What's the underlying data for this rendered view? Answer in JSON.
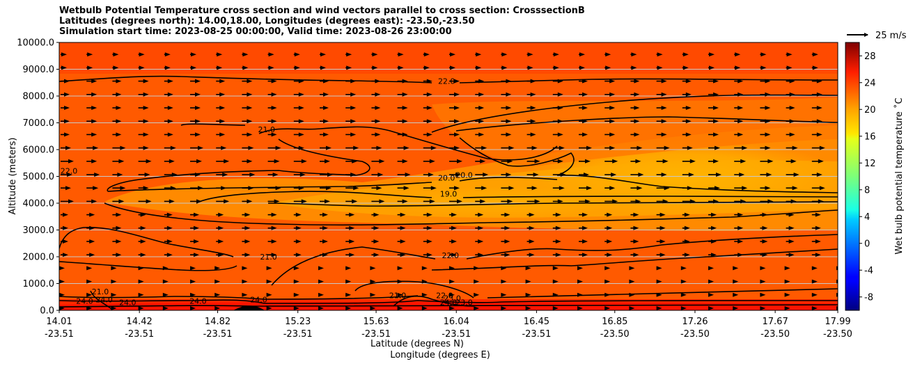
{
  "chart_data": {
    "type": "heatmap",
    "title_lines": [
      "Wetbulb Potential Temperature cross section and wind vectors parallel to cross section: CrosssectionB",
      "Latitudes (degrees north): 14.00,18.00, Longitudes (degrees east): -23.50,-23.50",
      "Simulation start time: 2023-08-25 00:00:00, Valid time: 2023-08-26 23:00:00"
    ],
    "xlabel_lat": "Latitude (degrees N)",
    "xlabel_lon": "Longitude (degrees E)",
    "ylabel": "Altitude (meters)",
    "ylim": [
      0,
      10000
    ],
    "xlim": [
      14.01,
      17.99
    ],
    "y_ticks": [
      "0.0",
      "1000.0",
      "2000.0",
      "3000.0",
      "4000.0",
      "5000.0",
      "6000.0",
      "7000.0",
      "8000.0",
      "9000.0",
      "10000.0"
    ],
    "y_tick_values": [
      0,
      1000,
      2000,
      3000,
      4000,
      5000,
      6000,
      7000,
      8000,
      9000,
      10000
    ],
    "x_tick_lat": [
      "14.01",
      "14.42",
      "14.82",
      "15.23",
      "15.63",
      "16.04",
      "16.45",
      "16.85",
      "17.26",
      "17.67",
      "17.99"
    ],
    "x_tick_lon": [
      "-23.51",
      "-23.51",
      "-23.51",
      "-23.51",
      "-23.51",
      "-23.51",
      "-23.51",
      "-23.50",
      "-23.50",
      "-23.50",
      "-23.50"
    ],
    "x_tick_values": [
      14.01,
      14.42,
      14.82,
      15.23,
      15.63,
      16.04,
      16.45,
      16.85,
      17.26,
      17.67,
      17.99
    ],
    "colorbar": {
      "label": "Wet bulb potential temperature $^\\circ$C",
      "label_display": "Wet bulb potential temperature ˚C",
      "range": [
        -10,
        30
      ],
      "ticks": [
        "-8",
        "-4",
        "0",
        "4",
        "8",
        "12",
        "16",
        "20",
        "24",
        "28"
      ],
      "tick_values": [
        -8,
        -4,
        0,
        4,
        8,
        12,
        16,
        20,
        24,
        28
      ],
      "colormap": "jet"
    },
    "quiver_key": {
      "label": "25 m/s"
    },
    "contour_labels": [
      {
        "text": "22.0",
        "lat": 15.99,
        "alt": 8450
      },
      {
        "text": "21.0",
        "lat": 15.07,
        "alt": 6650
      },
      {
        "text": "22.0",
        "lat": 14.06,
        "alt": 5100
      },
      {
        "text": "20.0",
        "lat": 15.99,
        "alt": 4850
      },
      {
        "text": "20.0",
        "lat": 16.08,
        "alt": 4950
      },
      {
        "text": "19.0",
        "lat": 16.0,
        "alt": 4250
      },
      {
        "text": "22.0",
        "lat": 16.01,
        "alt": 1950
      },
      {
        "text": "21.0",
        "lat": 15.08,
        "alt": 1900
      },
      {
        "text": "21.0",
        "lat": 14.22,
        "alt": 600
      },
      {
        "text": "24.0",
        "lat": 14.24,
        "alt": 300
      },
      {
        "text": "24.0",
        "lat": 14.14,
        "alt": 250
      },
      {
        "text": "24.0",
        "lat": 14.36,
        "alt": 200
      },
      {
        "text": "24.0",
        "lat": 14.72,
        "alt": 250
      },
      {
        "text": "24.0",
        "lat": 15.03,
        "alt": 300
      },
      {
        "text": "21.0",
        "lat": 15.74,
        "alt": 450
      },
      {
        "text": "22.0",
        "lat": 15.98,
        "alt": 450
      },
      {
        "text": "23.0",
        "lat": 16.02,
        "alt": 350
      },
      {
        "text": "24.0",
        "lat": 16.0,
        "alt": 200
      },
      {
        "text": "23.0",
        "lat": 16.08,
        "alt": 200
      }
    ]
  }
}
